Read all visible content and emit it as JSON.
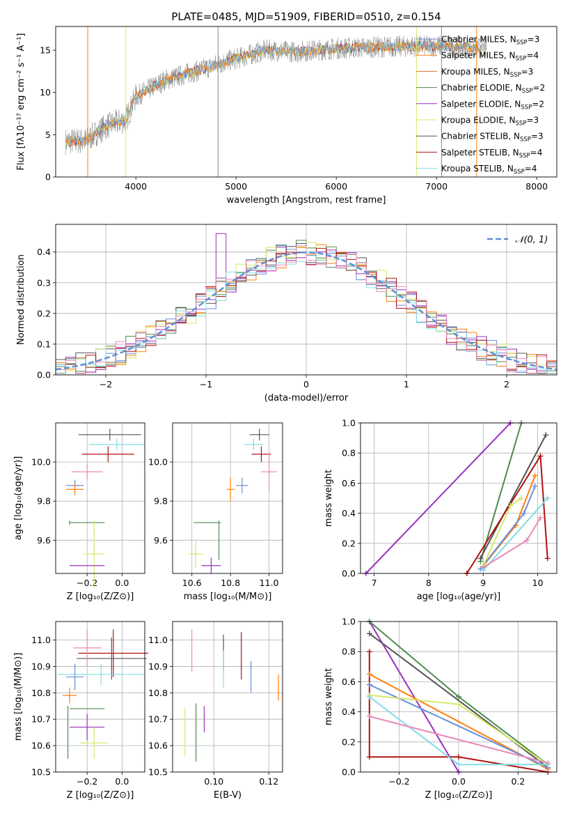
{
  "title": "PLATE=0485, MJD=51909, FIBERID=0510, z=0.154",
  "colors": {
    "cm": "#6a8fd8",
    "sm": "#ff7f0e",
    "km": "#c8752c",
    "ce": "#4d8a4d",
    "se": "#9a2fbd",
    "ke": "#d4e86a",
    "cs": "#555555",
    "ss": "#b01010",
    "ks": "#80dde4",
    "pink": "#e88ab8",
    "gauss": "#5b8fd8"
  },
  "legend_labels": {
    "cm": "Chabrier MILES, N",
    "sm": "Salpeter MILES, N",
    "km": "Kroupa MILES, N",
    "ce": "Chabrier ELODIE, N",
    "se": "Salpeter ELODIE, N",
    "ke": "Kroupa ELODIE, N",
    "cs": "Chabrier STELIB, N",
    "ss": "Salpeter STELIB, N",
    "ks": "Kroupa STELIB, N",
    "sub": "SSP",
    "n_cm": "=3",
    "n_sm": "=4",
    "n_km": "=3",
    "n_ce": "=2",
    "n_se": "=2",
    "n_ke": "=3",
    "n_cs": "=3",
    "n_ss": "=4",
    "n_ks": "=4"
  },
  "gauss_label": "𝒩(0, 1)",
  "chart_data": [
    {
      "type": "line",
      "name": "spectrum",
      "xlabel": "wavelength [Angstrom, rest frame]",
      "ylabel": "Flux [fλ10⁻¹⁷ erg cm⁻² s⁻¹ A⁻¹]",
      "xlim": [
        3200,
        8200
      ],
      "ylim": [
        0,
        17.8
      ],
      "xticks": [
        "4000",
        "5000",
        "6000",
        "7000",
        "8000"
      ],
      "yticks": [
        "0",
        "5",
        "10",
        "15"
      ],
      "spectrum_trend": {
        "x": [
          3300,
          3500,
          3700,
          3900,
          4000,
          4300,
          4600,
          5000,
          5300,
          5600,
          6000,
          6500,
          7000,
          7400,
          7500
        ],
        "y": [
          4.2,
          4.3,
          6.0,
          6.8,
          9.5,
          11.5,
          12.5,
          14.0,
          15.0,
          14.8,
          15.2,
          15.4,
          15.5,
          15.3,
          15.2
        ]
      }
    },
    {
      "type": "histogram",
      "name": "residuals",
      "xlabel": "(data-model)/error",
      "ylabel": "Normed distribution",
      "xlim": [
        -2.5,
        2.5
      ],
      "ylim": [
        0,
        0.49
      ],
      "xticks": [
        "−2",
        "−1",
        "0",
        "1",
        "2"
      ],
      "yticks": [
        "0.0",
        "0.1",
        "0.2",
        "0.3",
        "0.4"
      ]
    },
    {
      "type": "scatter",
      "name": "Z-age",
      "xlabel": "Z [log₁₀(Z/Z⊙)]",
      "ylabel": "age  [log₁₀(age/yr)]",
      "xlim": [
        -0.38,
        0.13
      ],
      "ylim": [
        9.43,
        10.2
      ],
      "xticks": [
        "−0.2",
        "0.0"
      ],
      "yticks": [
        "9.6",
        "9.8",
        "10.0"
      ]
    },
    {
      "type": "scatter",
      "name": "mass-age",
      "xlabel": "mass [log₁₀(M/M⊙)]",
      "xlim": [
        10.5,
        11.07
      ],
      "ylim": [
        9.43,
        10.2
      ],
      "xticks": [
        "10.6",
        "10.8",
        "11.0"
      ],
      "yticks": [
        "9.6",
        "9.8",
        "10.0"
      ]
    },
    {
      "type": "line",
      "name": "age-massweight",
      "xlabel": "age  [log₁₀(age/yr)]",
      "ylabel": "mass weight",
      "xlim": [
        6.75,
        10.35
      ],
      "ylim": [
        0,
        1
      ],
      "xticks": [
        "7",
        "8",
        "9",
        "10"
      ],
      "yticks": [
        "0.0",
        "0.2",
        "0.4",
        "0.6",
        "0.8",
        "1.0"
      ],
      "series": [
        {
          "key": "se",
          "x": [
            6.85,
            9.5
          ],
          "y": [
            0.0,
            1.0
          ]
        },
        {
          "key": "ce",
          "x": [
            8.95,
            9.7
          ],
          "y": [
            0.08,
            1.0
          ]
        },
        {
          "key": "cs",
          "x": [
            8.95,
            10.15
          ],
          "y": [
            0.1,
            0.92
          ]
        },
        {
          "key": "ss",
          "x": [
            8.7,
            10.05,
            10.18
          ],
          "y": [
            0.0,
            0.78,
            0.1
          ]
        },
        {
          "key": "sm",
          "x": [
            9.0,
            9.6,
            9.95
          ],
          "y": [
            0.05,
            0.32,
            0.65
          ]
        },
        {
          "key": "cm",
          "x": [
            8.95,
            9.75,
            9.95
          ],
          "y": [
            0.03,
            0.4,
            0.58
          ]
        },
        {
          "key": "ke",
          "x": [
            9.0,
            9.5,
            9.7
          ],
          "y": [
            0.05,
            0.45,
            0.5
          ]
        },
        {
          "key": "ks",
          "x": [
            9.0,
            10.18
          ],
          "y": [
            0.02,
            0.5
          ]
        },
        {
          "key": "pink",
          "x": [
            9.0,
            9.8,
            10.05
          ],
          "y": [
            0.04,
            0.22,
            0.37
          ]
        }
      ]
    },
    {
      "type": "scatter",
      "name": "Z-mass",
      "xlabel": "Z [log₁₀(Z/Z⊙)]",
      "ylabel": "mass [log₁₀(M/M⊙)]",
      "xlim": [
        -0.38,
        0.13
      ],
      "ylim": [
        10.5,
        11.07
      ],
      "xticks": [
        "−0.2",
        "0.0"
      ],
      "yticks": [
        "10.5",
        "10.6",
        "10.7",
        "10.8",
        "10.9",
        "11.0"
      ]
    },
    {
      "type": "scatter",
      "name": "EBV-mass",
      "xlabel": "E(B-V)",
      "xlim": [
        0.085,
        0.125
      ],
      "ylim": [
        10.5,
        11.07
      ],
      "xticks": [
        "0.10",
        "0.12"
      ],
      "yticks": [
        "10.5",
        "10.6",
        "10.7",
        "10.8",
        "10.9",
        "11.0"
      ]
    },
    {
      "type": "line",
      "name": "Z-massweight",
      "xlabel": "Z [log₁₀(Z/Z⊙)]",
      "ylabel": "mass weight",
      "xlim": [
        -0.33,
        0.33
      ],
      "ylim": [
        0,
        1
      ],
      "xticks": [
        "−0.2",
        "0.0",
        "0.2"
      ],
      "yticks": [
        "0.0",
        "0.2",
        "0.4",
        "0.6",
        "0.8",
        "1.0"
      ],
      "series": [
        {
          "key": "se",
          "x": [
            -0.3,
            0.0
          ],
          "y": [
            1.0,
            0.0
          ]
        },
        {
          "key": "ce",
          "x": [
            -0.3,
            0.0,
            0.3
          ],
          "y": [
            1.0,
            0.5,
            0.05
          ]
        },
        {
          "key": "cs",
          "x": [
            -0.3,
            0.3
          ],
          "y": [
            0.92,
            0.03
          ]
        },
        {
          "key": "ss",
          "x": [
            -0.3,
            -0.3,
            0.0,
            0.3
          ],
          "y": [
            0.8,
            0.1,
            0.1,
            0.0
          ]
        },
        {
          "key": "sm",
          "x": [
            -0.3,
            0.3
          ],
          "y": [
            0.65,
            0.02
          ]
        },
        {
          "key": "cm",
          "x": [
            -0.3,
            0.3
          ],
          "y": [
            0.58,
            0.03
          ]
        },
        {
          "key": "ke",
          "x": [
            -0.3,
            0.0,
            0.3
          ],
          "y": [
            0.51,
            0.45,
            0.05
          ]
        },
        {
          "key": "ks",
          "x": [
            -0.3,
            0.0,
            0.3
          ],
          "y": [
            0.5,
            0.05,
            0.05
          ]
        },
        {
          "key": "pink",
          "x": [
            -0.3,
            0.3
          ],
          "y": [
            0.37,
            0.06
          ]
        }
      ]
    }
  ]
}
